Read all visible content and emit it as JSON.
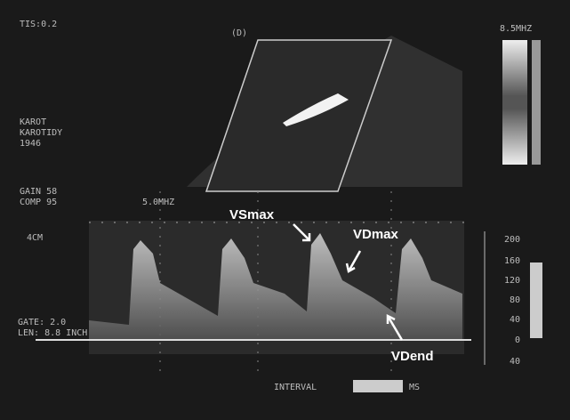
{
  "screen": {
    "top_left": [
      "TIS:0.2",
      "KAROT",
      "KAROTIDY",
      "1946"
    ],
    "settings": [
      "GAIN 58",
      "COMP 95"
    ],
    "mode_label": "(D)",
    "probe_freq": "8.5MHZ",
    "spectrum_freq": "5.0MHZ",
    "depth": "4CM",
    "gate": [
      "GATE: 2.0",
      "LEN: 8.8 INCH"
    ],
    "scale_labels": [
      "200",
      "160",
      "120",
      "80",
      "40",
      "0",
      "40"
    ],
    "interval": {
      "label": "INTERVAL",
      "unit": "MS"
    }
  },
  "annotations": [
    "VSmax",
    "VDmax",
    "VDend"
  ]
}
